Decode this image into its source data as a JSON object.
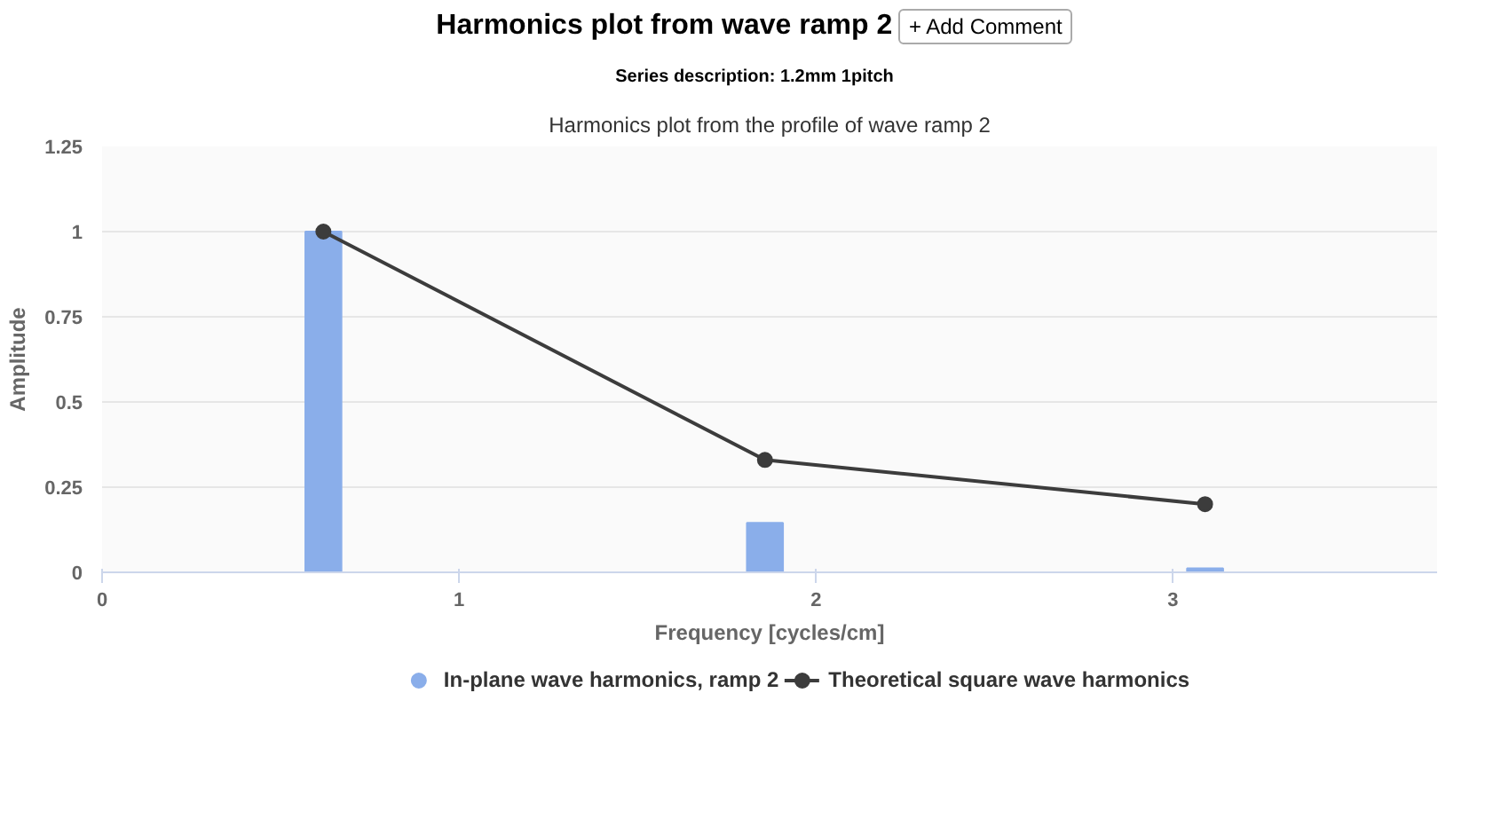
{
  "chart_data": {
    "type": "bar",
    "title": "Harmonics plot from wave ramp 2",
    "subtitle": "Series description: 1.2mm 1pitch",
    "annotations": [
      "+ Add Comment",
      "Harmonics plot from the profile of wave ramp 2"
    ],
    "xlabel": "Frequency [cycles/cm]",
    "ylabel": "Amplitude",
    "xlim": [
      0,
      3.74
    ],
    "xticks": [
      0,
      1,
      2,
      3
    ],
    "ylim": [
      0,
      1.25
    ],
    "yticks": [
      0,
      0.25,
      0.5,
      0.75,
      1,
      1.25
    ],
    "grid": "y",
    "legend": "bottom",
    "series": [
      {
        "name": "In-plane wave harmonics, ramp 2",
        "color": "#8aaeea",
        "x": [
          0.62,
          1.857,
          3.09
        ],
        "values": [
          1.0,
          0.145,
          0.012
        ]
      },
      {
        "name": "Theoretical square wave harmonics",
        "type": "line",
        "color": "#3c3c3c",
        "marker": "circle",
        "x": [
          0.62,
          1.857,
          3.09
        ],
        "values": [
          1.0,
          0.33,
          0.2
        ]
      }
    ]
  }
}
